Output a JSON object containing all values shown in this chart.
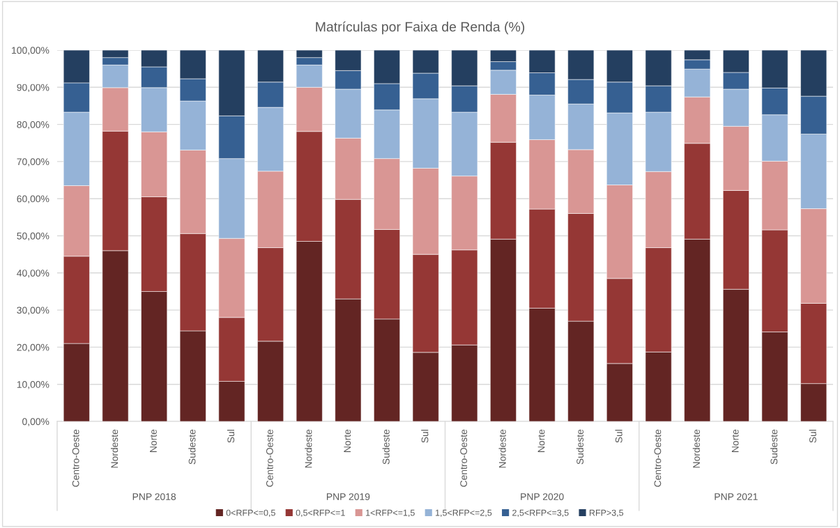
{
  "chart_data": {
    "type": "bar",
    "stacked": true,
    "title": "Matrículas por Faixa de Renda (%)",
    "categories": [
      "Centro-Oeste",
      "Nordeste",
      "Norte",
      "Sudeste",
      "Sul",
      "Centro-Oeste",
      "Nordeste",
      "Norte",
      "Sudeste",
      "Sul",
      "Centro-Oeste",
      "Nordeste",
      "Norte",
      "Sudeste",
      "Sul",
      "Centro-Oeste",
      "Nordeste",
      "Norte",
      "Sudeste",
      "Sul"
    ],
    "annotations": [
      "PNP 2018",
      "PNP 2019",
      "PNP 2020",
      "PNP 2021"
    ],
    "series": [
      {
        "name": "0<RFP<=0,5",
        "color": "#632523",
        "values": [
          21,
          46,
          35,
          24.4,
          10.8,
          21.6,
          48.5,
          33,
          27.6,
          18.6,
          20.6,
          49.1,
          30.5,
          27,
          15.6,
          18.7,
          49.1,
          35.6,
          24.1,
          10.2
        ]
      },
      {
        "name": "0,5<RFP<=1",
        "color": "#953735",
        "values": [
          23.5,
          32.2,
          25.5,
          26.2,
          17.2,
          25.2,
          29.6,
          26.8,
          24.1,
          26.4,
          25.6,
          26.1,
          26.7,
          29,
          22.9,
          28.1,
          25.8,
          26.6,
          27.5,
          21.6
        ]
      },
      {
        "name": "1<RFP<=1,5",
        "color": "#d99694",
        "values": [
          19,
          11.7,
          17.5,
          22.5,
          21.3,
          20.6,
          11.9,
          16.5,
          19.1,
          23.2,
          19.9,
          12.9,
          18.7,
          17.2,
          25.2,
          20.5,
          12.5,
          17.3,
          18.5,
          25.5
        ]
      },
      {
        "name": "1,5<RFP<=2,5",
        "color": "#95b3d7",
        "values": [
          19.8,
          6.1,
          11.9,
          13.2,
          21.5,
          17.2,
          6,
          13.2,
          13.1,
          18.7,
          17.2,
          6.5,
          12,
          12.3,
          19.4,
          16,
          7.5,
          10,
          12.5,
          20.1
        ]
      },
      {
        "name": "2,5<RFP<=3,5",
        "color": "#366092",
        "values": [
          7.9,
          2,
          5.6,
          6,
          11.5,
          6.8,
          2,
          5,
          7.1,
          6.9,
          7.1,
          2.3,
          6,
          6.6,
          8.3,
          7.1,
          2.5,
          4.5,
          7.2,
          10.2
        ]
      },
      {
        "name": "RFP>3,5",
        "color": "#243f60",
        "values": [
          8.8,
          2,
          4.5,
          7.7,
          17.7,
          8.6,
          2,
          5.5,
          9,
          6.2,
          9.6,
          3.1,
          6.1,
          7.9,
          8.6,
          9.6,
          2.6,
          6,
          10.2,
          12.4
        ]
      }
    ],
    "ylim": [
      0,
      100
    ],
    "yticks": [
      {
        "value": 0,
        "label": "0,00%"
      },
      {
        "value": 10,
        "label": "10,00%"
      },
      {
        "value": 20,
        "label": "20,00%"
      },
      {
        "value": 30,
        "label": "30,00%"
      },
      {
        "value": 40,
        "label": "40,00%"
      },
      {
        "value": 50,
        "label": "50,00%"
      },
      {
        "value": 60,
        "label": "60,00%"
      },
      {
        "value": 70,
        "label": "70,00%"
      },
      {
        "value": 80,
        "label": "80,00%"
      },
      {
        "value": 90,
        "label": "90,00%"
      },
      {
        "value": 100,
        "label": "100,00%"
      }
    ],
    "grid": "y",
    "legend": "bottom"
  }
}
